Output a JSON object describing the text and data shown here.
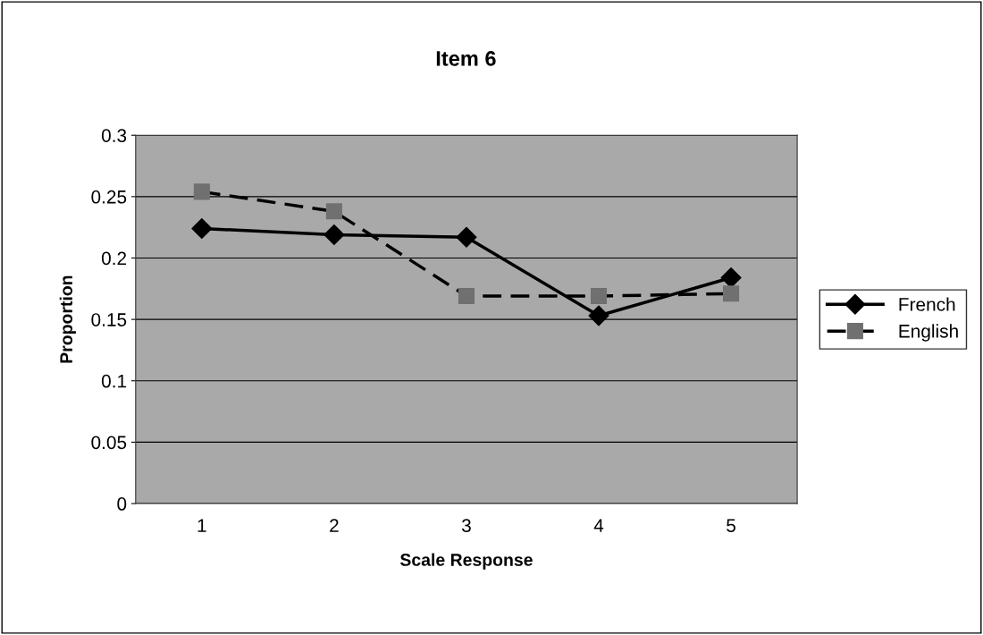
{
  "chart_data": {
    "type": "line",
    "title": "Item 6",
    "xlabel": "Scale Response",
    "ylabel": "Proportion",
    "categories": [
      "1",
      "2",
      "3",
      "4",
      "5"
    ],
    "series": [
      {
        "name": "French",
        "color": "#000000",
        "values": [
          0.224,
          0.219,
          0.217,
          0.153,
          0.184
        ],
        "marker": "diamond",
        "line_style": "solid"
      },
      {
        "name": "English",
        "color": "#000000",
        "colors": [
          "#707070",
          "#707070",
          "#707070",
          "#707070",
          "#707070"
        ],
        "values": [
          0.254,
          0.238,
          0.169,
          0.169,
          0.171
        ],
        "marker": "square",
        "line_style": "dashed"
      }
    ],
    "ylim": [
      0,
      0.3
    ],
    "yticks": [
      0,
      0.05,
      0.1,
      0.15,
      0.2,
      0.25,
      0.3
    ],
    "grid": "y",
    "legend": "right"
  }
}
